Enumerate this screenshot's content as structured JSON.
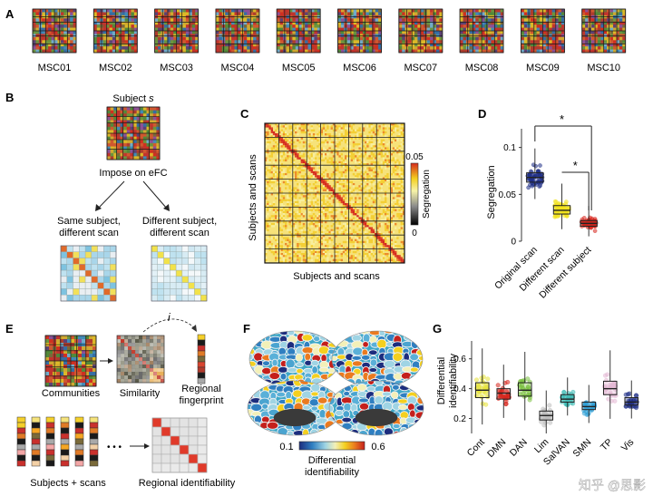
{
  "panels": {
    "A": {
      "letter": "A",
      "subjects": [
        "MSC01",
        "MSC02",
        "MSC03",
        "MSC04",
        "MSC05",
        "MSC06",
        "MSC07",
        "MSC08",
        "MSC09",
        "MSC10"
      ]
    },
    "B": {
      "letter": "B",
      "subject_label": "Subject",
      "subject_var": "s",
      "impose_label": "Impose on eFC",
      "same_line1": "Same subject,",
      "same_line2": "different scan",
      "diff_line1": "Different subject,",
      "diff_line2": "different scan"
    },
    "C": {
      "letter": "C",
      "ylabel": "Subjects and scans",
      "xlabel": "Subjects and scans",
      "cbar_label": "Segregation",
      "cbar_max": "0.05",
      "cbar_min": "0"
    },
    "E": {
      "letter": "E",
      "communities": "Communities",
      "similarity": "Similarity",
      "regional_line1": "Regional",
      "regional_line2": "fingerprint",
      "index": "i",
      "subjects_scans": "Subjects + scans",
      "ellipsis": "• • •",
      "regional_identifiability": "Regional identifiability"
    },
    "F": {
      "letter": "F",
      "cbar_min": "0.1",
      "cbar_max": "0.6",
      "cbar_line1": "Differential",
      "cbar_line2": "identifiability"
    },
    "watermark": "知乎 @思影"
  },
  "chart_data": [
    {
      "id": "D",
      "letter": "D",
      "type": "boxplot",
      "title": "",
      "ylabel": "Segregation",
      "ylim": [
        0,
        0.12
      ],
      "yticks": [
        "0",
        "0.05",
        "0.1"
      ],
      "ytick_values": [
        0,
        0.05,
        0.1
      ],
      "categories": [
        "Original scan",
        "Different scan",
        "Different subject"
      ],
      "colors": [
        "#1f2f86",
        "#f2e21b",
        "#d7261e"
      ],
      "boxes": [
        {
          "q1": 0.063,
          "median": 0.068,
          "q3": 0.073
        },
        {
          "q1": 0.029,
          "median": 0.033,
          "q3": 0.038
        },
        {
          "q1": 0.016,
          "median": 0.019,
          "q3": 0.022
        }
      ],
      "annotations": [
        "*",
        "*"
      ]
    },
    {
      "id": "G",
      "letter": "G",
      "type": "boxplot",
      "ylabel_line1": "Differential",
      "ylabel_line2": "identifiability",
      "ylim": [
        0.1,
        0.72
      ],
      "yticks": [
        "0.2",
        "0.4",
        "0.6"
      ],
      "ytick_values": [
        0.2,
        0.4,
        0.6
      ],
      "categories": [
        "Cont",
        "DMN",
        "DAN",
        "Lim",
        "SalVAN",
        "SMN",
        "TP",
        "Vis"
      ],
      "colors": [
        "#e6e23a",
        "#d7261e",
        "#7cc142",
        "#bdbdbd",
        "#3cb9b4",
        "#2e9fd6",
        "#e4b8d4",
        "#1f2f86"
      ],
      "boxes": [
        {
          "q1": 0.34,
          "median": 0.39,
          "q3": 0.44
        },
        {
          "q1": 0.33,
          "median": 0.37,
          "q3": 0.4
        },
        {
          "q1": 0.35,
          "median": 0.39,
          "q3": 0.44
        },
        {
          "q1": 0.19,
          "median": 0.22,
          "q3": 0.25
        },
        {
          "q1": 0.31,
          "median": 0.33,
          "q3": 0.36
        },
        {
          "q1": 0.26,
          "median": 0.28,
          "q3": 0.31
        },
        {
          "q1": 0.36,
          "median": 0.4,
          "q3": 0.45
        },
        {
          "q1": 0.29,
          "median": 0.31,
          "q3": 0.34
        }
      ]
    }
  ]
}
